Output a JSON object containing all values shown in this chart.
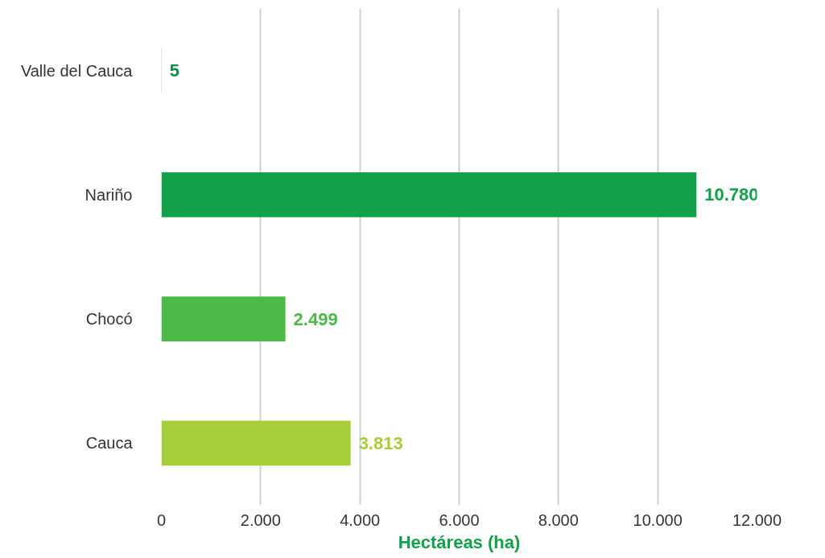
{
  "chart_data": {
    "type": "bar",
    "orientation": "horizontal",
    "xlabel": "Hectáreas (ha)",
    "categories": [
      "Valle del Cauca",
      "Nariño",
      "Chocó",
      "Cauca"
    ],
    "values": [
      5,
      10780,
      2499,
      3813
    ],
    "colors": [
      "#0a8f4a",
      "#13a04a",
      "#4cb848",
      "#a6ce39"
    ],
    "value_labels": [
      "5",
      "10.780",
      "2.499",
      "3.813"
    ],
    "xlim": [
      0,
      12000
    ],
    "xticks": [
      0,
      {
        "value": 2000,
        "label": "2.000"
      },
      {
        "value": 4000,
        "label": "4.000"
      },
      {
        "value": 6000,
        "label": "6.000"
      },
      {
        "value": 8000,
        "label": "8.000"
      },
      {
        "value": 10000,
        "label": "10.000"
      },
      {
        "value": 12000,
        "label": "12.000"
      }
    ],
    "grid": "x"
  }
}
